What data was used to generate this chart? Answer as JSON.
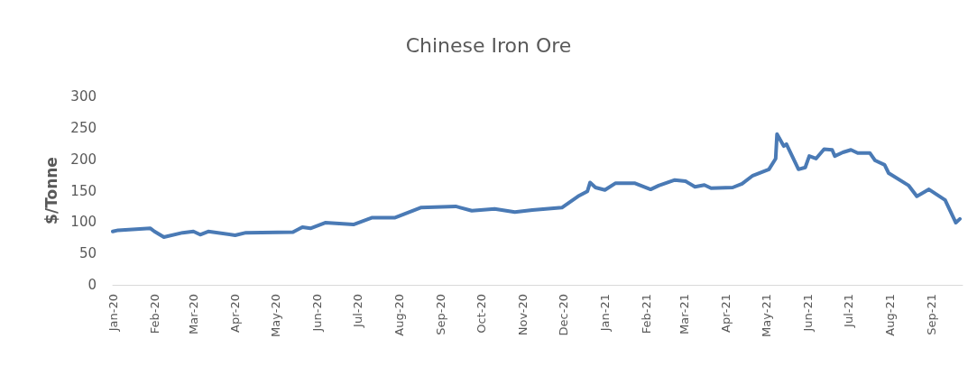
{
  "chart_data": {
    "type": "line",
    "title": "Chinese Iron Ore",
    "ylabel": "$/Tonne",
    "x": [
      "2020-01-01",
      "2020-01-05",
      "2020-01-29",
      "2020-02-01",
      "2020-02-08",
      "2020-02-22",
      "2020-03-01",
      "2020-03-06",
      "2020-03-12",
      "2020-04-01",
      "2020-04-09",
      "2020-05-14",
      "2020-05-21",
      "2020-05-27",
      "2020-06-07",
      "2020-06-28",
      "2020-07-12",
      "2020-07-29",
      "2020-08-17",
      "2020-09-12",
      "2020-09-24",
      "2020-10-11",
      "2020-10-26",
      "2020-11-08",
      "2020-11-30",
      "2020-12-12",
      "2020-12-19",
      "2020-12-21",
      "2020-12-25",
      "2021-01-01",
      "2021-01-09",
      "2021-01-23",
      "2021-02-04",
      "2021-02-10",
      "2021-02-22",
      "2021-03-02",
      "2021-03-09",
      "2021-03-16",
      "2021-03-21",
      "2021-04-06",
      "2021-04-13",
      "2021-04-21",
      "2021-05-03",
      "2021-05-08",
      "2021-05-09",
      "2021-05-14",
      "2021-05-16",
      "2021-05-25",
      "2021-05-30",
      "2021-06-02",
      "2021-06-07",
      "2021-06-13",
      "2021-06-19",
      "2021-06-21",
      "2021-06-27",
      "2021-07-03",
      "2021-07-08",
      "2021-07-17",
      "2021-07-21",
      "2021-07-28",
      "2021-07-31",
      "2021-08-15",
      "2021-08-21",
      "2021-08-30",
      "2021-09-11",
      "2021-09-19",
      "2021-09-22"
    ],
    "series": [
      {
        "color": "#4a7ab5",
        "values": [
          85,
          87,
          90,
          85,
          76,
          83,
          85,
          80,
          85,
          79,
          83,
          84,
          92,
          90,
          99,
          96,
          107,
          107,
          123,
          125,
          118,
          121,
          116,
          119,
          123,
          141,
          149,
          163,
          155,
          151,
          162,
          162,
          152,
          158,
          167,
          165,
          156,
          159,
          154,
          155,
          161,
          174,
          184,
          201,
          240,
          221,
          224,
          184,
          187,
          205,
          201,
          216,
          215,
          205,
          211,
          215,
          210,
          210,
          198,
          191,
          178,
          158,
          141,
          152,
          135,
          99,
          105
        ]
      }
    ],
    "xlim": [
      "2020-01-01",
      "2021-09-24"
    ],
    "xticks": [
      {
        "value": "2020-01-01",
        "label": "Jan-20"
      },
      {
        "value": "2020-02-01",
        "label": "Feb-20"
      },
      {
        "value": "2020-03-01",
        "label": "Mar-20"
      },
      {
        "value": "2020-04-01",
        "label": "Apr-20"
      },
      {
        "value": "2020-05-01",
        "label": "May-20"
      },
      {
        "value": "2020-06-01",
        "label": "Jun-20"
      },
      {
        "value": "2020-07-01",
        "label": "Jul-20"
      },
      {
        "value": "2020-08-01",
        "label": "Aug-20"
      },
      {
        "value": "2020-09-01",
        "label": "Sep-20"
      },
      {
        "value": "2020-10-01",
        "label": "Oct-20"
      },
      {
        "value": "2020-11-01",
        "label": "Nov-20"
      },
      {
        "value": "2020-12-01",
        "label": "Dec-20"
      },
      {
        "value": "2021-01-01",
        "label": "Jan-21"
      },
      {
        "value": "2021-02-01",
        "label": "Feb-21"
      },
      {
        "value": "2021-03-01",
        "label": "Mar-21"
      },
      {
        "value": "2021-04-01",
        "label": "Apr-21"
      },
      {
        "value": "2021-05-01",
        "label": "May-21"
      },
      {
        "value": "2021-06-01",
        "label": "Jun-21"
      },
      {
        "value": "2021-07-01",
        "label": "Jul-21"
      },
      {
        "value": "2021-08-01",
        "label": "Aug-21"
      },
      {
        "value": "2021-09-01",
        "label": "Sep-21"
      }
    ],
    "ylim": [
      0,
      300
    ],
    "yticks": [
      0,
      50,
      100,
      150,
      200,
      250,
      300
    ],
    "grid": false,
    "marker": "none",
    "line_style": "solid"
  }
}
